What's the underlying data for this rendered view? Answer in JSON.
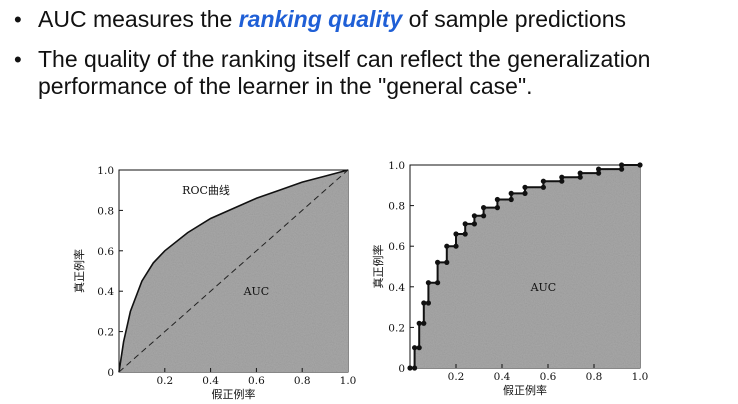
{
  "bullets": [
    {
      "before": "AUC measures the ",
      "emphasis": "ranking quality",
      "after": " of sample predictions"
    },
    {
      "line1": "The quality of the ranking itself can reflect the generalization",
      "line2": "performance of the learner in the \"general case\"."
    }
  ],
  "colors": {
    "emphasis": "#1f5fd6",
    "plot_fill": "#a8a8a8"
  },
  "chart_data": [
    {
      "type": "area",
      "curve_label": "ROC曲线",
      "area_label": "AUC",
      "xlabel": "假正例率",
      "ylabel": "真正例率",
      "xlim": [
        0,
        1
      ],
      "ylim": [
        0,
        1
      ],
      "x_ticks": [
        "0.2",
        "0.4",
        "0.6",
        "0.8",
        "1.0"
      ],
      "y_ticks": [
        "0",
        "0.2",
        "0.4",
        "0.6",
        "0.8",
        "1.0"
      ],
      "diagonal": "dashed",
      "x": [
        0,
        0.02,
        0.05,
        0.1,
        0.15,
        0.2,
        0.3,
        0.4,
        0.5,
        0.6,
        0.7,
        0.8,
        0.9,
        1.0
      ],
      "y": [
        0,
        0.15,
        0.3,
        0.45,
        0.54,
        0.6,
        0.69,
        0.76,
        0.81,
        0.86,
        0.9,
        0.94,
        0.97,
        1.0
      ]
    },
    {
      "type": "area",
      "area_label": "AUC",
      "xlabel": "假正例率",
      "ylabel": "真正例率",
      "xlim": [
        0,
        1
      ],
      "ylim": [
        0,
        1
      ],
      "x_ticks": [
        "0.2",
        "0.4",
        "0.6",
        "0.8",
        "1.0"
      ],
      "y_ticks": [
        "0",
        "0.2",
        "0.4",
        "0.6",
        "0.8",
        "1.0"
      ],
      "step": true,
      "x": [
        0,
        0.02,
        0.02,
        0.04,
        0.04,
        0.06,
        0.06,
        0.08,
        0.08,
        0.12,
        0.12,
        0.16,
        0.16,
        0.2,
        0.2,
        0.24,
        0.24,
        0.28,
        0.28,
        0.32,
        0.32,
        0.38,
        0.38,
        0.44,
        0.44,
        0.5,
        0.5,
        0.58,
        0.58,
        0.66,
        0.66,
        0.74,
        0.74,
        0.82,
        0.82,
        0.92,
        0.92,
        1.0
      ],
      "y": [
        0,
        0,
        0.1,
        0.1,
        0.22,
        0.22,
        0.32,
        0.32,
        0.42,
        0.42,
        0.52,
        0.52,
        0.6,
        0.6,
        0.66,
        0.66,
        0.71,
        0.71,
        0.75,
        0.75,
        0.79,
        0.79,
        0.83,
        0.83,
        0.86,
        0.86,
        0.89,
        0.89,
        0.92,
        0.92,
        0.94,
        0.94,
        0.96,
        0.96,
        0.98,
        0.98,
        1.0,
        1.0
      ]
    }
  ]
}
